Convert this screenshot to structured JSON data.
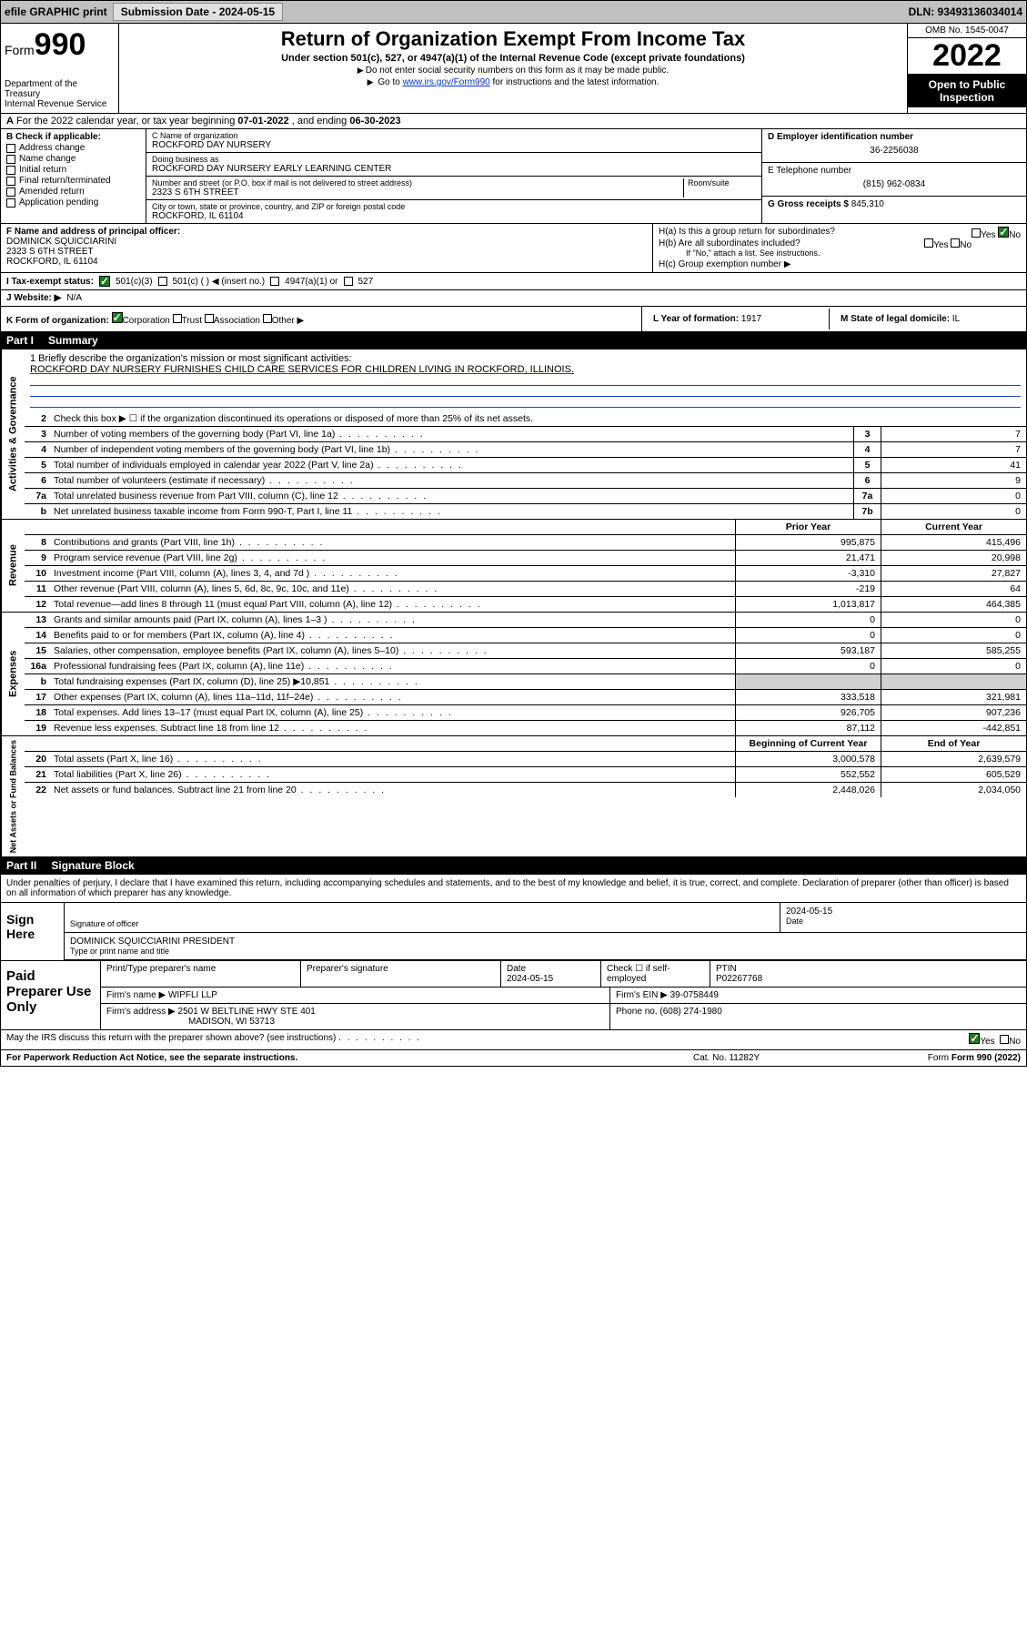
{
  "topbar": {
    "efile": "efile GRAPHIC print",
    "submission_label": "Submission Date - 2024-05-15",
    "dln_label": "DLN: 93493136034014"
  },
  "header": {
    "form_label": "Form",
    "form_number": "990",
    "dept": "Department of the Treasury\nInternal Revenue Service",
    "title": "Return of Organization Exempt From Income Tax",
    "subtitle": "Under section 501(c), 527, or 4947(a)(1) of the Internal Revenue Code (except private foundations)",
    "note1": "Do not enter social security numbers on this form as it may be made public.",
    "note2_pre": "Go to ",
    "note2_link": "www.irs.gov/Form990",
    "note2_post": " for instructions and the latest information.",
    "omb": "OMB No. 1545-0047",
    "year": "2022",
    "open": "Open to Public Inspection"
  },
  "line_a": {
    "text_pre": "For the 2022 calendar year, or tax year beginning ",
    "begin": "07-01-2022",
    "mid": " , and ending ",
    "end": "06-30-2023"
  },
  "col_b": {
    "heading": "B Check if applicable:",
    "items": [
      "Address change",
      "Name change",
      "Initial return",
      "Final return/terminated",
      "Amended return",
      "Application pending"
    ]
  },
  "col_c": {
    "name_lbl": "C Name of organization",
    "name": "ROCKFORD DAY NURSERY",
    "dba_lbl": "Doing business as",
    "dba": "ROCKFORD DAY NURSERY EARLY LEARNING CENTER",
    "street_lbl": "Number and street (or P.O. box if mail is not delivered to street address)",
    "room_lbl": "Room/suite",
    "street": "2323 S 6TH STREET",
    "city_lbl": "City or town, state or province, country, and ZIP or foreign postal code",
    "city": "ROCKFORD, IL  61104"
  },
  "col_de": {
    "d_lbl": "D Employer identification number",
    "d_val": "36-2256038",
    "e_lbl": "E Telephone number",
    "e_val": "(815) 962-0834",
    "g_lbl": "G Gross receipts $ ",
    "g_val": "845,310"
  },
  "col_f": {
    "lbl": "F Name and address of principal officer:",
    "name": "DOMINICK SQUICCIARINI",
    "addr1": "2323 S 6TH STREET",
    "addr2": "ROCKFORD, IL  61104"
  },
  "col_h": {
    "ha": "H(a)  Is this a group return for subordinates?",
    "hb": "H(b)  Are all subordinates included?",
    "hb_note": "If \"No,\" attach a list. See instructions.",
    "hc": "H(c)  Group exemption number ▶",
    "yes": "Yes",
    "no": "No"
  },
  "row_i": {
    "label": "I   Tax-exempt status:",
    "opts": [
      "501(c)(3)",
      "501(c) (  ) ◀ (insert no.)",
      "4947(a)(1) or",
      "527"
    ]
  },
  "row_j": {
    "label": "J   Website: ▶",
    "val": "N/A"
  },
  "row_k": {
    "label": "K Form of organization:",
    "opts": [
      "Corporation",
      "Trust",
      "Association",
      "Other ▶"
    ],
    "l_lbl": "L Year of formation: ",
    "l_val": "1917",
    "m_lbl": "M State of legal domicile: ",
    "m_val": "IL"
  },
  "part1": {
    "partnum": "Part I",
    "title": "Summary"
  },
  "sections": {
    "gov": {
      "label": "Activities & Governance",
      "q1_lbl": "1  Briefly describe the organization's mission or most significant activities:",
      "q1_val": "ROCKFORD DAY NURSERY FURNISHES CHILD CARE SERVICES FOR CHILDREN LIVING IN ROCKFORD, ILLINOIS.",
      "q2": "Check this box ▶ ☐  if the organization discontinued its operations or disposed of more than 25% of its net assets.",
      "rows": [
        {
          "n": "3",
          "d": "Number of voting members of the governing body (Part VI, line 1a)",
          "box": "3",
          "v": "7"
        },
        {
          "n": "4",
          "d": "Number of independent voting members of the governing body (Part VI, line 1b)",
          "box": "4",
          "v": "7"
        },
        {
          "n": "5",
          "d": "Total number of individuals employed in calendar year 2022 (Part V, line 2a)",
          "box": "5",
          "v": "41"
        },
        {
          "n": "6",
          "d": "Total number of volunteers (estimate if necessary)",
          "box": "6",
          "v": "9"
        },
        {
          "n": "7a",
          "d": "Total unrelated business revenue from Part VIII, column (C), line 12",
          "box": "7a",
          "v": "0"
        },
        {
          "n": "b",
          "d": "Net unrelated business taxable income from Form 990-T, Part I, line 11",
          "box": "7b",
          "v": "0"
        }
      ]
    },
    "rev": {
      "label": "Revenue",
      "hdr_prior": "Prior Year",
      "hdr_curr": "Current Year",
      "rows": [
        {
          "n": "8",
          "d": "Contributions and grants (Part VIII, line 1h)",
          "p": "995,875",
          "c": "415,496"
        },
        {
          "n": "9",
          "d": "Program service revenue (Part VIII, line 2g)",
          "p": "21,471",
          "c": "20,998"
        },
        {
          "n": "10",
          "d": "Investment income (Part VIII, column (A), lines 3, 4, and 7d )",
          "p": "-3,310",
          "c": "27,827"
        },
        {
          "n": "11",
          "d": "Other revenue (Part VIII, column (A), lines 5, 6d, 8c, 9c, 10c, and 11e)",
          "p": "-219",
          "c": "64"
        },
        {
          "n": "12",
          "d": "Total revenue—add lines 8 through 11 (must equal Part VIII, column (A), line 12)",
          "p": "1,013,817",
          "c": "464,385"
        }
      ]
    },
    "exp": {
      "label": "Expenses",
      "rows": [
        {
          "n": "13",
          "d": "Grants and similar amounts paid (Part IX, column (A), lines 1–3 )",
          "p": "0",
          "c": "0"
        },
        {
          "n": "14",
          "d": "Benefits paid to or for members (Part IX, column (A), line 4)",
          "p": "0",
          "c": "0"
        },
        {
          "n": "15",
          "d": "Salaries, other compensation, employee benefits (Part IX, column (A), lines 5–10)",
          "p": "593,187",
          "c": "585,255"
        },
        {
          "n": "16a",
          "d": "Professional fundraising fees (Part IX, column (A), line 11e)",
          "p": "0",
          "c": "0"
        },
        {
          "n": "b",
          "d": "Total fundraising expenses (Part IX, column (D), line 25) ▶10,851",
          "p": "",
          "c": "",
          "grey": true
        },
        {
          "n": "17",
          "d": "Other expenses (Part IX, column (A), lines 11a–11d, 11f–24e)",
          "p": "333,518",
          "c": "321,981"
        },
        {
          "n": "18",
          "d": "Total expenses. Add lines 13–17 (must equal Part IX, column (A), line 25)",
          "p": "926,705",
          "c": "907,236"
        },
        {
          "n": "19",
          "d": "Revenue less expenses. Subtract line 18 from line 12",
          "p": "87,112",
          "c": "-442,851"
        }
      ]
    },
    "net": {
      "label": "Net Assets or Fund Balances",
      "hdr_begin": "Beginning of Current Year",
      "hdr_end": "End of Year",
      "rows": [
        {
          "n": "20",
          "d": "Total assets (Part X, line 16)",
          "p": "3,000,578",
          "c": "2,639,579"
        },
        {
          "n": "21",
          "d": "Total liabilities (Part X, line 26)",
          "p": "552,552",
          "c": "605,529"
        },
        {
          "n": "22",
          "d": "Net assets or fund balances. Subtract line 21 from line 20",
          "p": "2,448,026",
          "c": "2,034,050"
        }
      ]
    }
  },
  "part2": {
    "partnum": "Part II",
    "title": "Signature Block"
  },
  "sig": {
    "intro": "Under penalties of perjury, I declare that I have examined this return, including accompanying schedules and statements, and to the best of my knowledge and belief, it is true, correct, and complete. Declaration of preparer (other than officer) is based on all information of which preparer has any knowledge.",
    "sign_here": "Sign Here",
    "sig_officer_lbl": "Signature of officer",
    "date_lbl": "Date",
    "date_val": "2024-05-15",
    "name_title": "DOMINICK SQUICCIARINI  PRESIDENT",
    "name_title_lbl": "Type or print name and title"
  },
  "prep": {
    "label": "Paid Preparer Use Only",
    "h_name": "Print/Type preparer's name",
    "h_sig": "Preparer's signature",
    "h_date": "Date",
    "date_val": "2024-05-15",
    "h_check": "Check ☐ if self-employed",
    "h_ptin": "PTIN",
    "ptin": "P02267768",
    "firm_name_lbl": "Firm's name      ▶",
    "firm_name": "WIPFLI LLP",
    "firm_ein_lbl": "Firm's EIN ▶",
    "firm_ein": "39-0758449",
    "firm_addr_lbl": "Firm's address ▶",
    "firm_addr1": "2501 W BELTLINE HWY STE 401",
    "firm_addr2": "MADISON, WI  53713",
    "phone_lbl": "Phone no.",
    "phone": "(608) 274-1980"
  },
  "discuss": {
    "q": "May the IRS discuss this return with the preparer shown above? (see instructions)",
    "yes": "Yes",
    "no": "No"
  },
  "footer": {
    "pra": "For Paperwork Reduction Act Notice, see the separate instructions.",
    "cat": "Cat. No. 11282Y",
    "form": "Form 990 (2022)"
  },
  "colors": {
    "link": "#0033cc",
    "check_green": "#1a7f1a",
    "rule_blue": "#2040c0"
  }
}
